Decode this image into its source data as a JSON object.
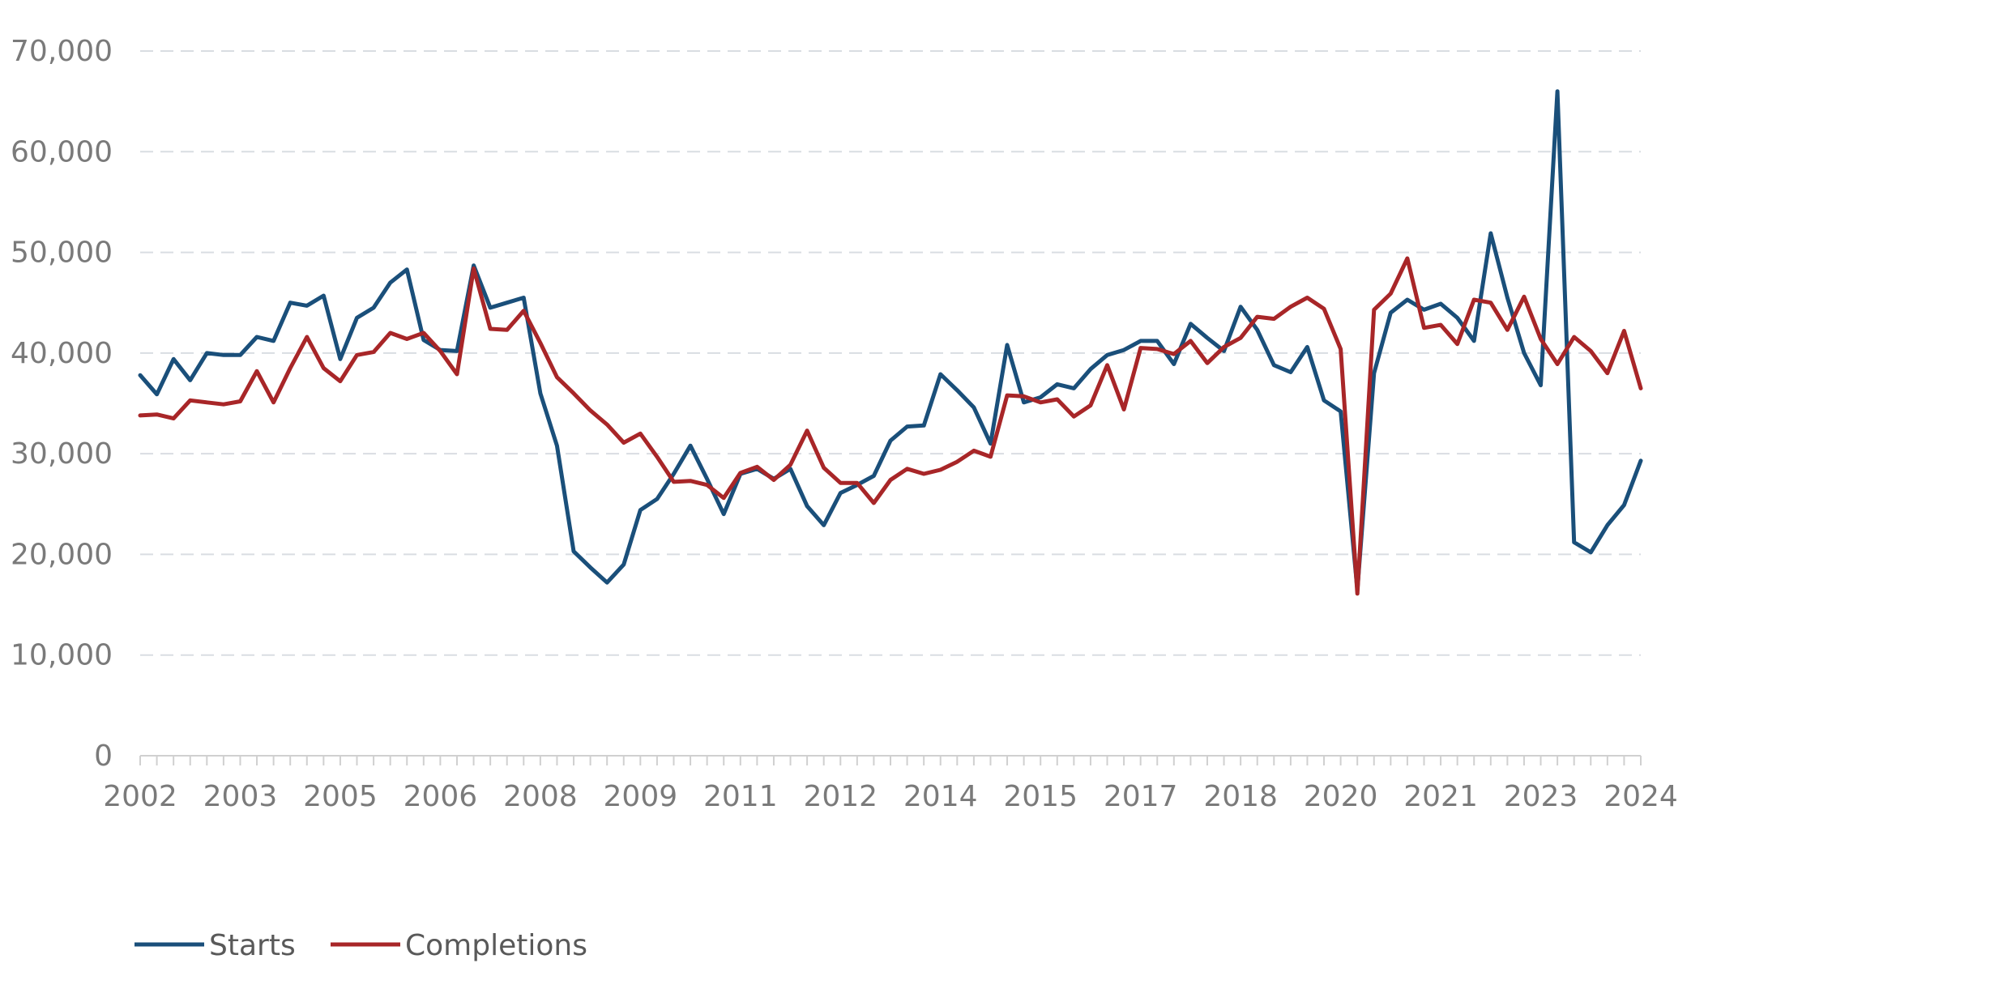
{
  "colors": {
    "starts": "#1a4f7a",
    "completions": "#a82628",
    "grid": "#d9dde2",
    "axis": "#d0d0d0",
    "text": "#7a7a7a"
  },
  "chart_data": {
    "type": "line",
    "title": "",
    "xlabel": "",
    "ylabel": "",
    "ylim": [
      0,
      70000
    ],
    "yticks": [
      0,
      10000,
      20000,
      30000,
      40000,
      50000,
      60000,
      70000
    ],
    "ytick_labels": [
      "0",
      "10,000",
      "20,000",
      "30,000",
      "40,000",
      "50,000",
      "60,000",
      "70,000"
    ],
    "x_labels": [
      "2002",
      "2003",
      "2005",
      "2006",
      "2008",
      "2009",
      "2011",
      "2012",
      "2014",
      "2015",
      "2017",
      "2018",
      "2020",
      "2021",
      "2023",
      "2024"
    ],
    "grid": true,
    "legend_position": "bottom-left",
    "series": [
      {
        "name": "Starts",
        "color": "#1a4f7a",
        "values": [
          37800,
          35900,
          39400,
          37300,
          40000,
          39800,
          39800,
          41600,
          41200,
          45000,
          44700,
          45700,
          39400,
          43500,
          44500,
          47000,
          48300,
          41300,
          40300,
          40200,
          48700,
          44500,
          45000,
          45500,
          36000,
          30800,
          20300,
          18700,
          17200,
          19000,
          24400,
          25500,
          28000,
          30800,
          27500,
          24000,
          28000,
          28500,
          27500,
          28500,
          24800,
          22900,
          26100,
          26900,
          27800,
          31300,
          32700,
          32800,
          37900,
          36300,
          34600,
          31000,
          40800,
          35100,
          35600,
          36900,
          36500,
          38400,
          39800,
          40300,
          41200,
          41200,
          38900,
          42900,
          41500,
          40200,
          44600,
          42300,
          38800,
          38100,
          40600,
          35300,
          34200,
          16500,
          38000,
          44000,
          45300,
          44300,
          44900,
          43500,
          41200,
          51900,
          45500,
          40000,
          36800,
          66000,
          21200,
          20200,
          22900,
          24900,
          29300
        ]
      },
      {
        "name": "Completions",
        "color": "#a82628",
        "values": [
          33800,
          33900,
          33500,
          35300,
          35100,
          34900,
          35200,
          38200,
          35100,
          38500,
          41600,
          38500,
          37200,
          39800,
          40100,
          42000,
          41400,
          42000,
          40200,
          37900,
          48400,
          42400,
          42300,
          44200,
          41000,
          37600,
          36000,
          34300,
          32900,
          31100,
          32000,
          29700,
          27200,
          27300,
          26900,
          25600,
          28100,
          28700,
          27400,
          28900,
          32300,
          28600,
          27100,
          27100,
          25100,
          27400,
          28500,
          28000,
          28400,
          29200,
          30300,
          29700,
          35800,
          35700,
          35100,
          35400,
          33700,
          34800,
          38800,
          34400,
          40500,
          40400,
          39900,
          41200,
          39000,
          40600,
          41500,
          43600,
          43400,
          44600,
          45500,
          44400,
          40400,
          16100,
          44300,
          45900,
          49400,
          42500,
          42800,
          40900,
          45300,
          45000,
          42300,
          45600,
          41400,
          38900,
          41600,
          40200,
          38000,
          42200,
          36500
        ]
      }
    ]
  }
}
